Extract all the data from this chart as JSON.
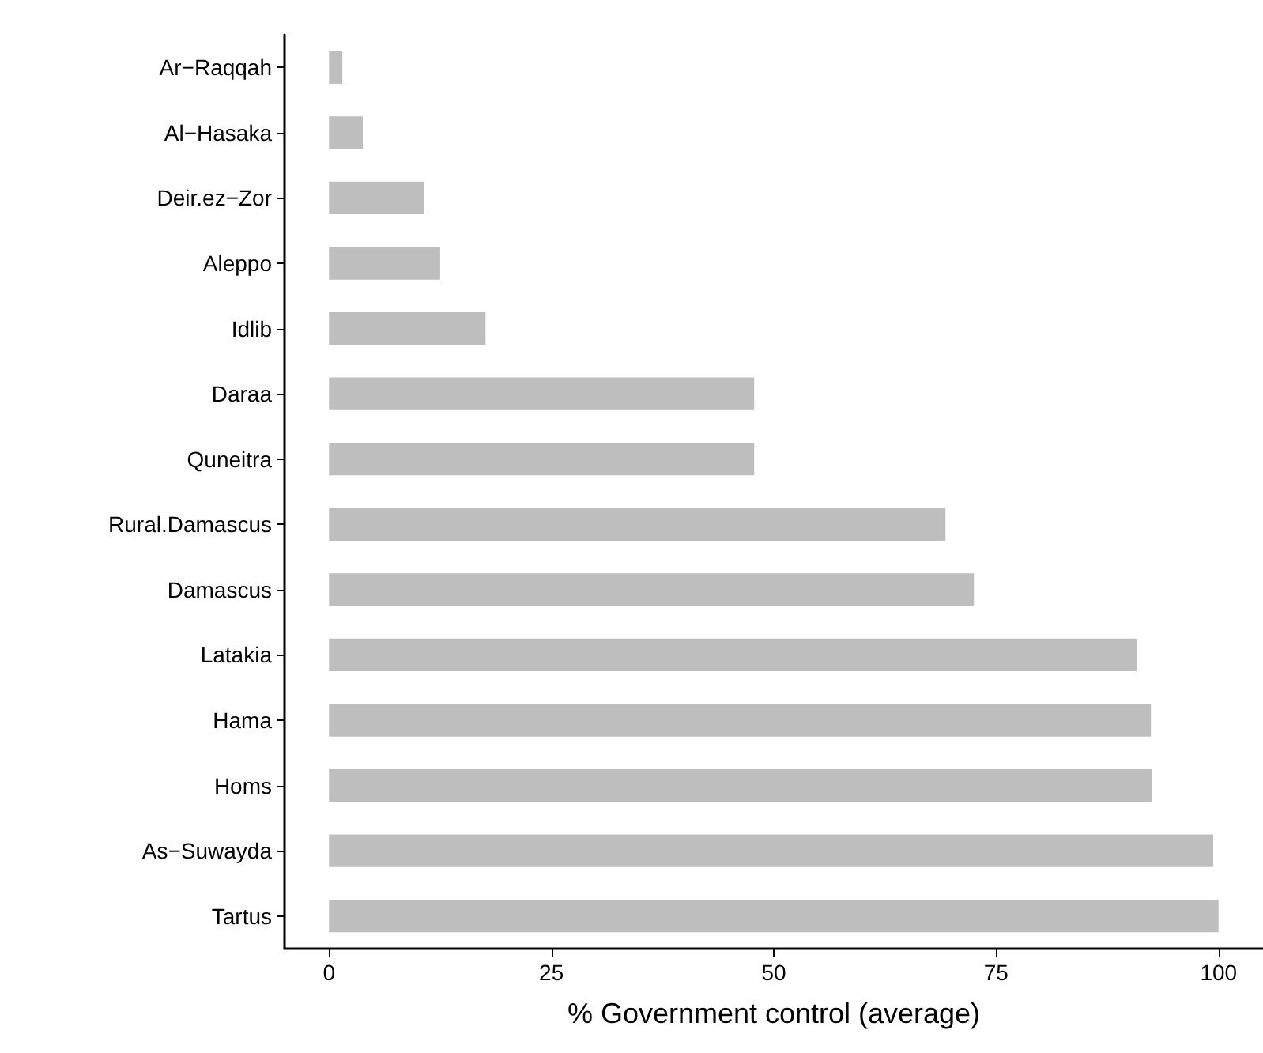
{
  "chart_data": {
    "type": "bar",
    "orientation": "horizontal",
    "xlabel": "% Government control (average)",
    "categories": [
      "Ar−Raqqah",
      "Al−Hasaka",
      "Deir.ez−Zor",
      "Aleppo",
      "Idlib",
      "Daraa",
      "Quneitra",
      "Rural.Damascus",
      "Damascus",
      "Latakia",
      "Hama",
      "Homs",
      "As−Suwayda",
      "Tartus"
    ],
    "values": [
      1.5,
      3.8,
      10.7,
      12.5,
      17.6,
      47.8,
      47.8,
      69.3,
      72.5,
      90.8,
      92.4,
      92.5,
      99.4,
      100
    ],
    "color": "#bebebe",
    "xlim": [
      -5,
      105
    ],
    "xticks": [
      0,
      25,
      50,
      75,
      100
    ],
    "grid": false
  }
}
